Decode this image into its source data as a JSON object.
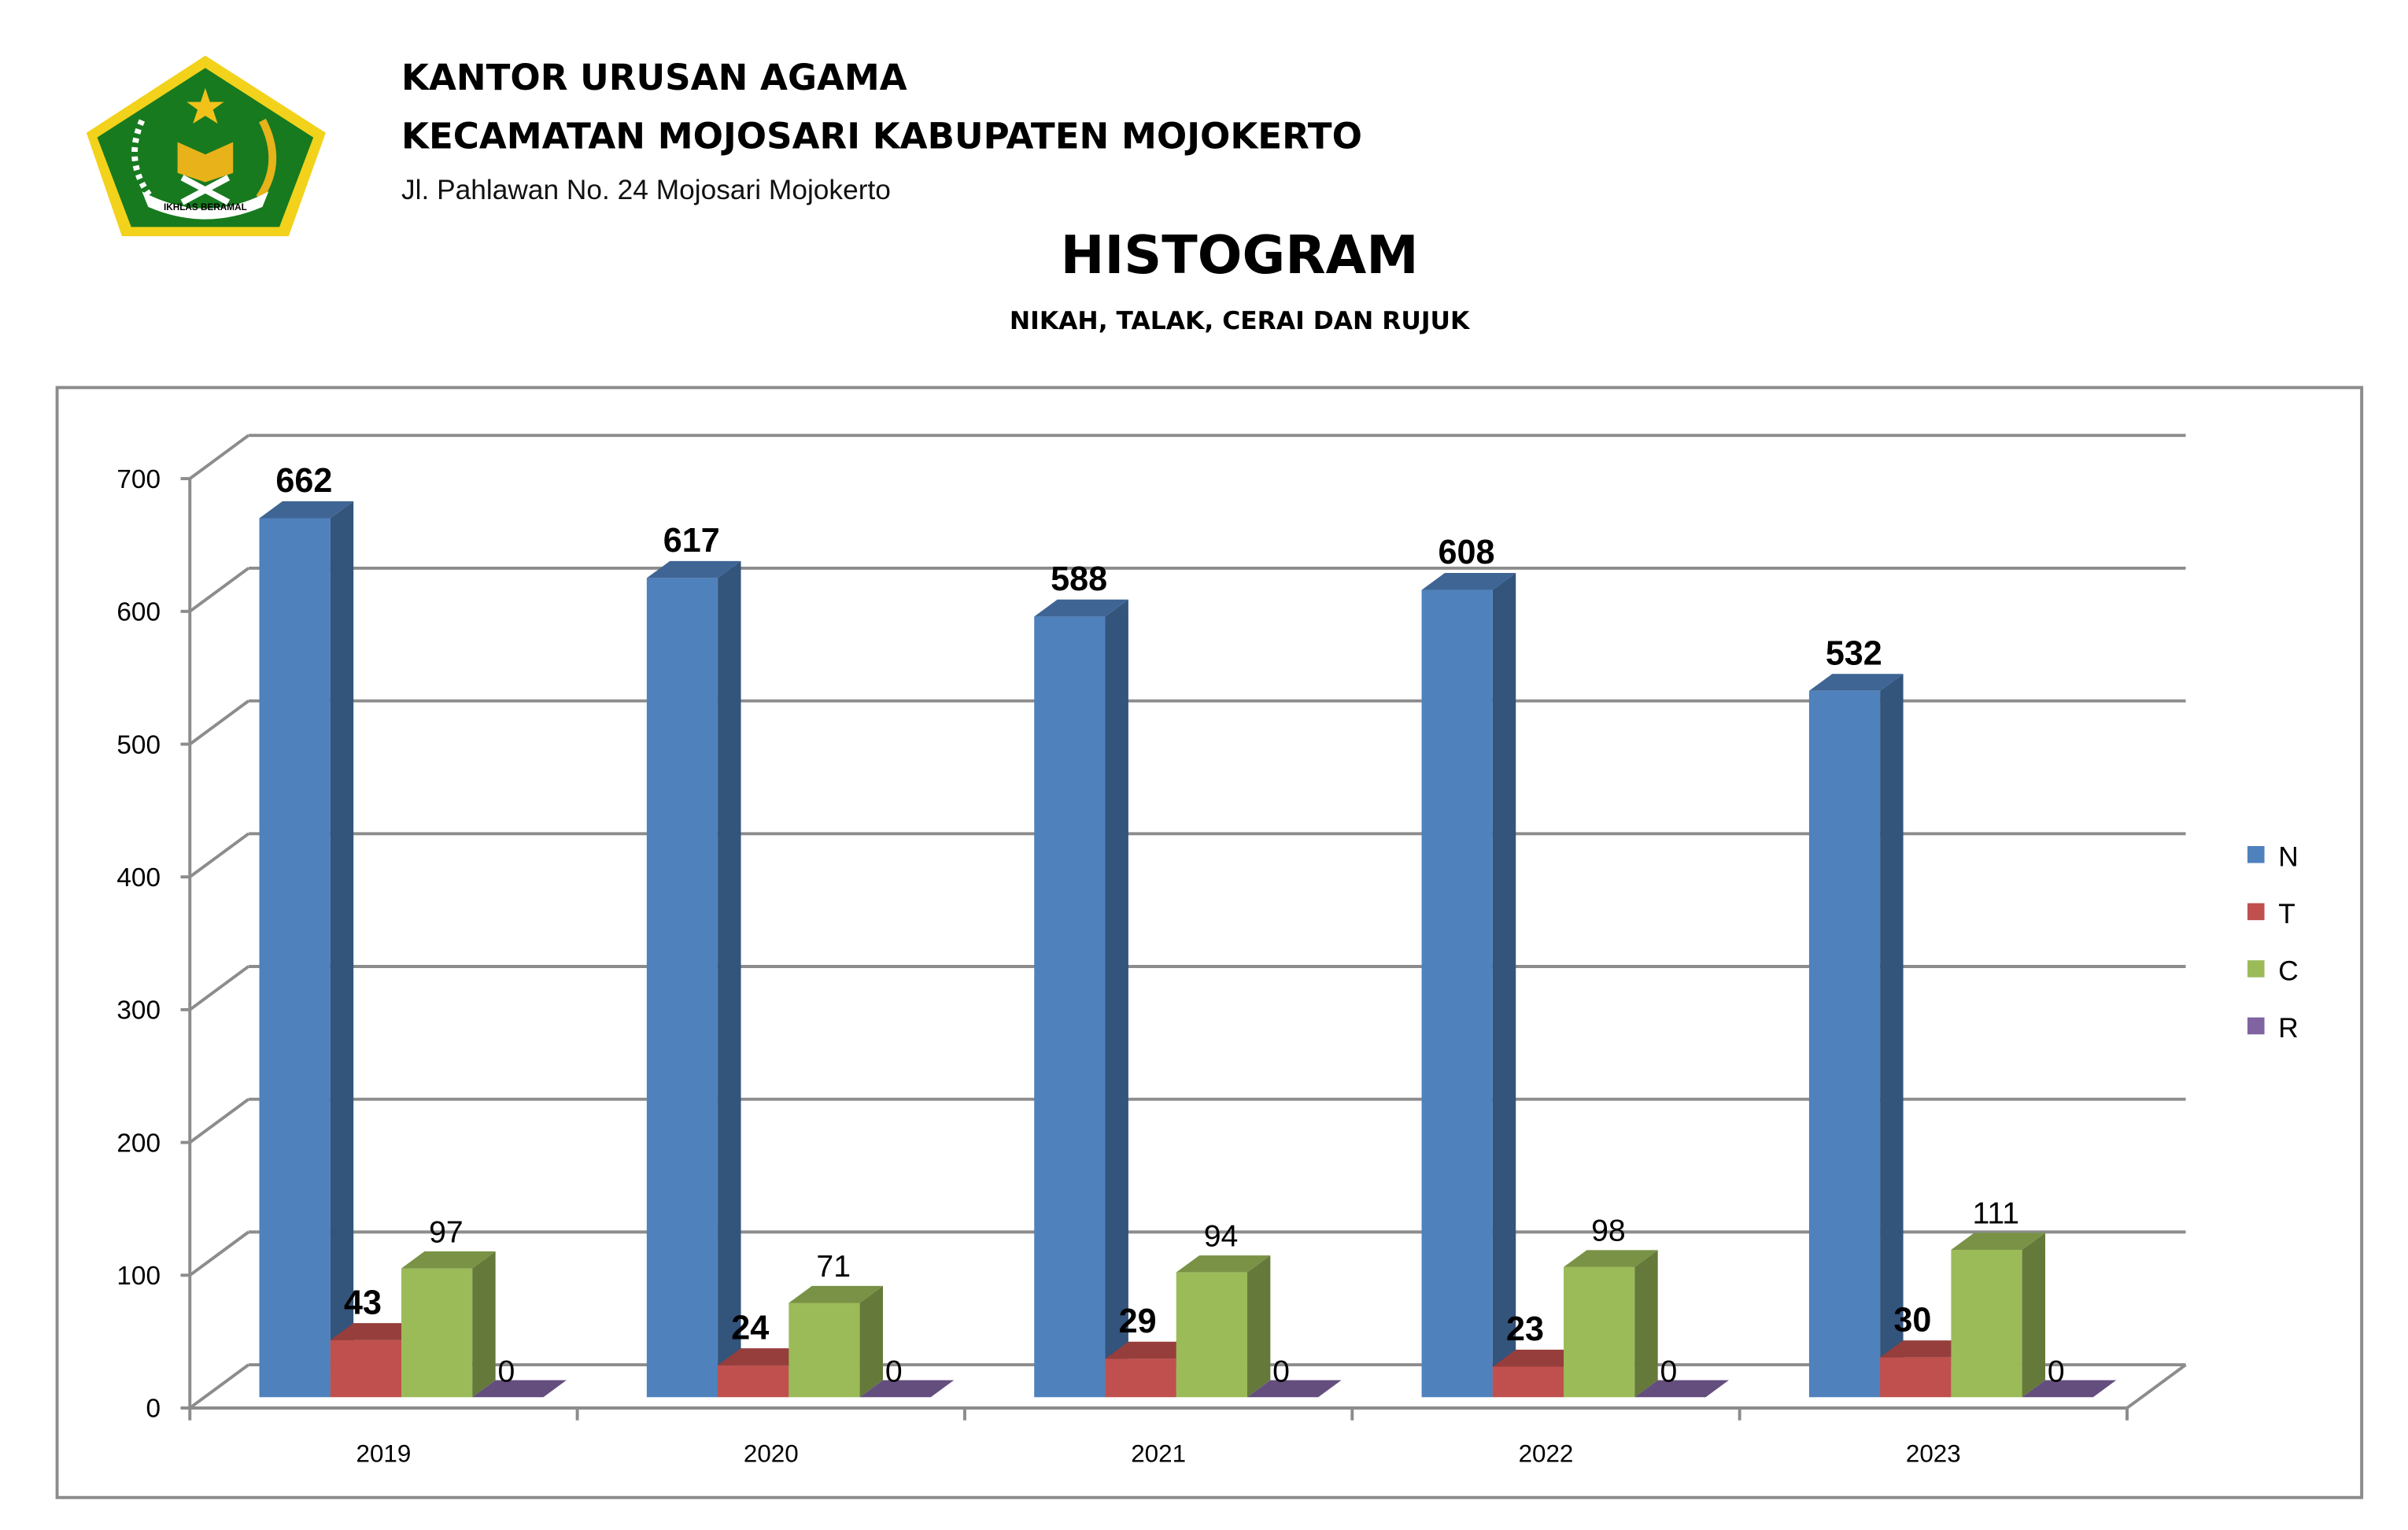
{
  "header": {
    "org_line1": "KANTOR URUSAN AGAMA",
    "org_line2": "KECAMATAN MOJOSARI KABUPATEN MOJOKERTO",
    "address": "Jl. Pahlawan No. 24 Mojosari Mojokerto",
    "logo_text": "IKHLAS BERAMAL"
  },
  "chart_data": {
    "type": "bar",
    "style": "3d-clustered-column",
    "title": "HISTOGRAM",
    "subtitle": "NIKAH, TALAK, CERAI DAN RUJUK",
    "categories": [
      "2019",
      "2020",
      "2021",
      "2022",
      "2023"
    ],
    "series": [
      {
        "name": "N",
        "color": "#4f81bd",
        "values": [
          662,
          617,
          588,
          608,
          532
        ]
      },
      {
        "name": "T",
        "color": "#c0504d",
        "values": [
          43,
          24,
          29,
          23,
          30
        ]
      },
      {
        "name": "C",
        "color": "#9bbb59",
        "values": [
          97,
          71,
          94,
          98,
          111
        ]
      },
      {
        "name": "R",
        "color": "#8064a2",
        "values": [
          0,
          0,
          0,
          0,
          0
        ]
      }
    ],
    "ylim": [
      0,
      700
    ],
    "yticks": [
      "0",
      "100",
      "200",
      "300",
      "400",
      "500",
      "600",
      "700"
    ],
    "grid": true,
    "legend": "right"
  }
}
